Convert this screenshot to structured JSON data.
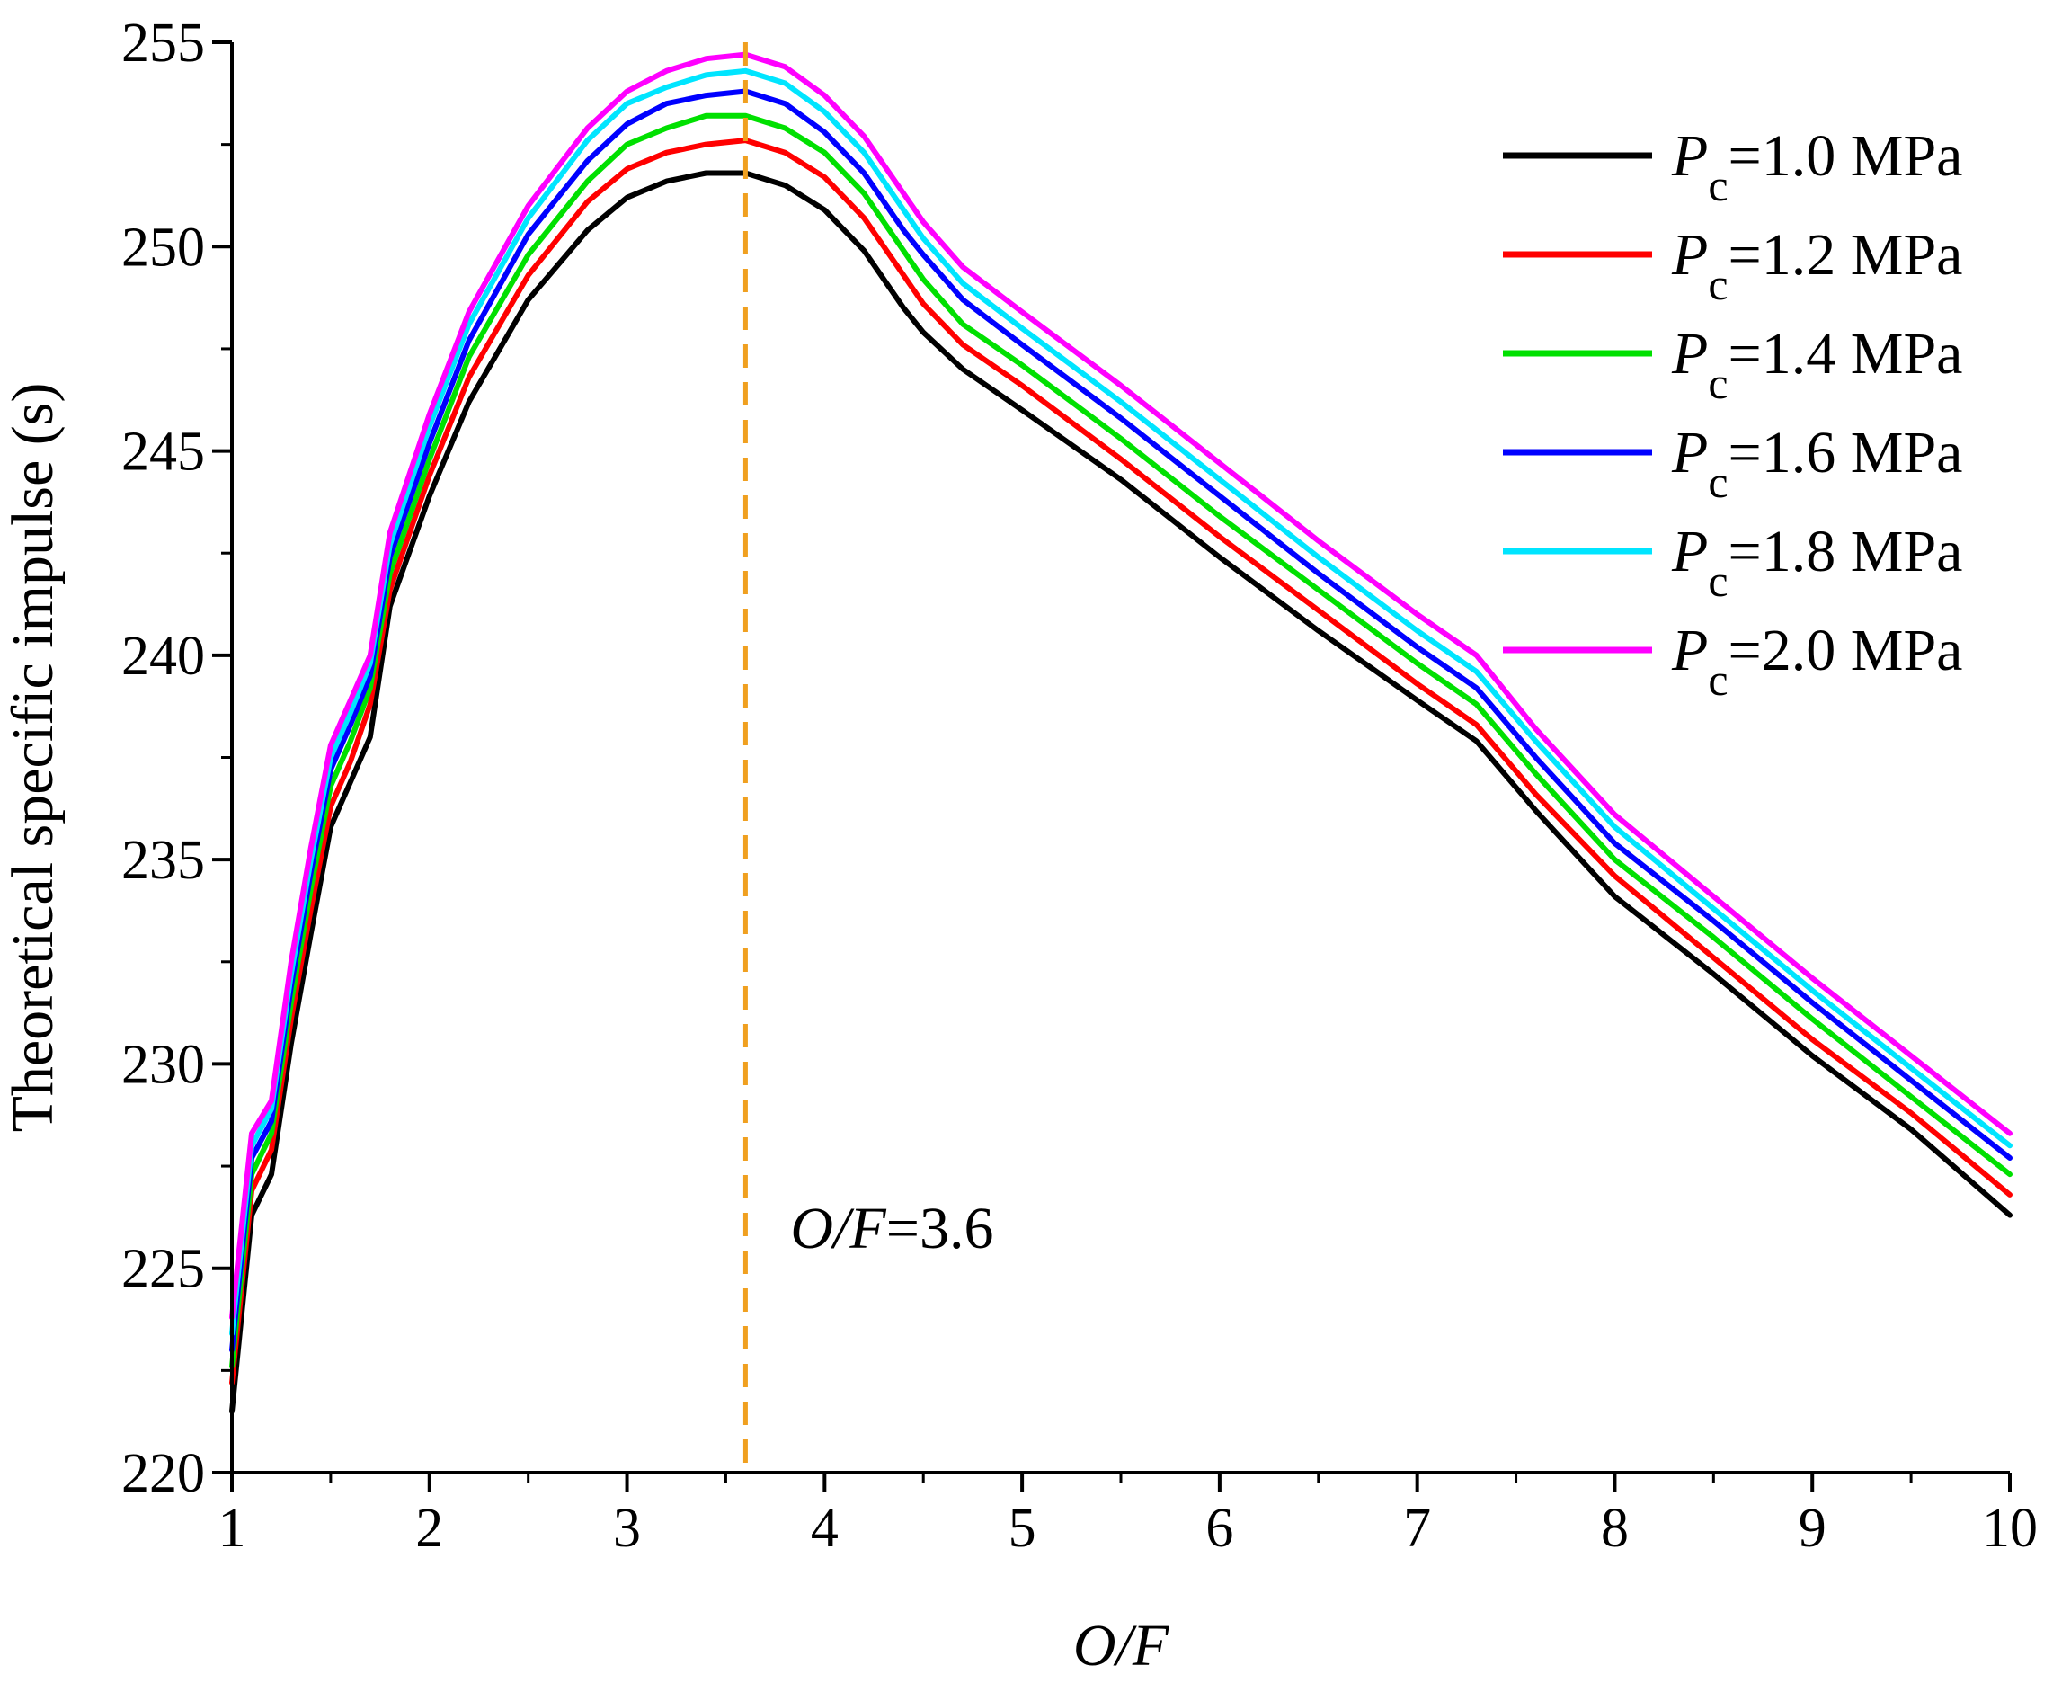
{
  "chart_data": {
    "type": "line",
    "title": "",
    "xlabel": {
      "italic": "O/F",
      "rest": ""
    },
    "ylabel": "Theoretical specific impulse (s)",
    "xlim": [
      1,
      10
    ],
    "ylim": [
      220,
      255
    ],
    "x_ticks": [
      "1",
      "2",
      "3",
      "4",
      "5",
      "6",
      "7",
      "8",
      "9",
      "10"
    ],
    "y_ticks": [
      "220",
      "225",
      "230",
      "235",
      "240",
      "245",
      "250",
      "255"
    ],
    "grid": false,
    "legend_position": "top-right",
    "annotation": {
      "x": 3.6,
      "italic": "O/F",
      "rest": "=3.6",
      "label_y": 225.5,
      "color": "#F0A020"
    },
    "x": [
      1.0,
      1.1,
      1.2,
      1.3,
      1.4,
      1.5,
      1.6,
      1.7,
      1.8,
      2.0,
      2.2,
      2.5,
      2.8,
      3.0,
      3.2,
      3.4,
      3.6,
      3.8,
      4.0,
      4.2,
      4.4,
      4.5,
      4.7,
      5.0,
      5.5,
      6.0,
      6.5,
      7.0,
      7.3,
      7.6,
      8.0,
      8.5,
      9.0,
      9.5,
      10.0
    ],
    "series": [
      {
        "name_italic": "P",
        "name_sub": "c",
        "name_rest": "=1.0 MPa",
        "color": "#000000",
        "values": [
          221.5,
          226.3,
          227.3,
          230.5,
          233.2,
          235.8,
          236.9,
          238.0,
          241.2,
          243.9,
          246.2,
          248.7,
          250.4,
          251.2,
          251.6,
          251.8,
          251.8,
          251.5,
          250.9,
          249.9,
          248.5,
          247.9,
          247.0,
          246.0,
          244.3,
          242.4,
          240.6,
          238.9,
          237.9,
          236.2,
          234.1,
          232.2,
          230.2,
          228.4,
          226.3
        ]
      },
      {
        "name_italic": "P",
        "name_sub": "c",
        "name_rest": "=1.2 MPa",
        "color": "#FF0000",
        "values": [
          222.2,
          226.9,
          227.9,
          231.1,
          233.8,
          236.3,
          237.4,
          238.8,
          241.6,
          244.4,
          246.8,
          249.3,
          251.1,
          251.9,
          252.3,
          252.5,
          252.6,
          252.3,
          251.7,
          250.7,
          249.3,
          248.6,
          247.6,
          246.6,
          244.8,
          242.9,
          241.1,
          239.3,
          238.3,
          236.6,
          234.6,
          232.6,
          230.6,
          228.8,
          226.8
        ]
      },
      {
        "name_italic": "P",
        "name_sub": "c",
        "name_rest": "=1.4 MPa",
        "color": "#00E000",
        "values": [
          222.6,
          227.3,
          228.3,
          231.5,
          234.3,
          236.8,
          237.9,
          239.2,
          242.0,
          244.8,
          247.3,
          249.8,
          251.6,
          252.5,
          252.9,
          253.2,
          253.2,
          252.9,
          252.3,
          251.3,
          249.9,
          249.2,
          248.1,
          247.1,
          245.3,
          243.4,
          241.6,
          239.8,
          238.8,
          237.1,
          235.0,
          233.1,
          231.1,
          229.2,
          227.3
        ]
      },
      {
        "name_italic": "P",
        "name_sub": "c",
        "name_rest": "=1.6 MPa",
        "color": "#0000FF",
        "values": [
          223.0,
          227.7,
          228.6,
          231.9,
          234.7,
          237.2,
          238.3,
          239.5,
          242.4,
          245.2,
          247.7,
          250.3,
          252.1,
          253.0,
          253.5,
          253.7,
          253.8,
          253.5,
          252.8,
          251.8,
          250.4,
          249.8,
          248.7,
          247.6,
          245.8,
          243.9,
          242.0,
          240.2,
          239.2,
          237.5,
          235.4,
          233.5,
          231.5,
          229.6,
          227.7
        ]
      },
      {
        "name_italic": "P",
        "name_sub": "c",
        "name_rest": "=1.8 MPa",
        "color": "#00E5FF",
        "values": [
          223.4,
          228.0,
          228.9,
          232.2,
          235.0,
          237.5,
          238.6,
          239.8,
          242.7,
          245.6,
          248.1,
          250.7,
          252.6,
          253.5,
          253.9,
          254.2,
          254.3,
          254.0,
          253.3,
          252.3,
          250.9,
          250.2,
          249.1,
          248.0,
          246.2,
          244.3,
          242.4,
          240.6,
          239.6,
          237.9,
          235.8,
          233.8,
          231.8,
          229.9,
          228.0
        ]
      },
      {
        "name_italic": "P",
        "name_sub": "c",
        "name_rest": "=2.0 MPa",
        "color": "#FF00FF",
        "values": [
          223.8,
          228.3,
          229.1,
          232.5,
          235.3,
          237.8,
          238.9,
          240.0,
          243.0,
          245.9,
          248.4,
          251.0,
          252.9,
          253.8,
          254.3,
          254.6,
          254.7,
          254.4,
          253.7,
          252.7,
          251.3,
          250.6,
          249.5,
          248.4,
          246.6,
          244.7,
          242.8,
          241.0,
          240.0,
          238.2,
          236.1,
          234.1,
          232.1,
          230.2,
          228.3
        ]
      }
    ]
  }
}
